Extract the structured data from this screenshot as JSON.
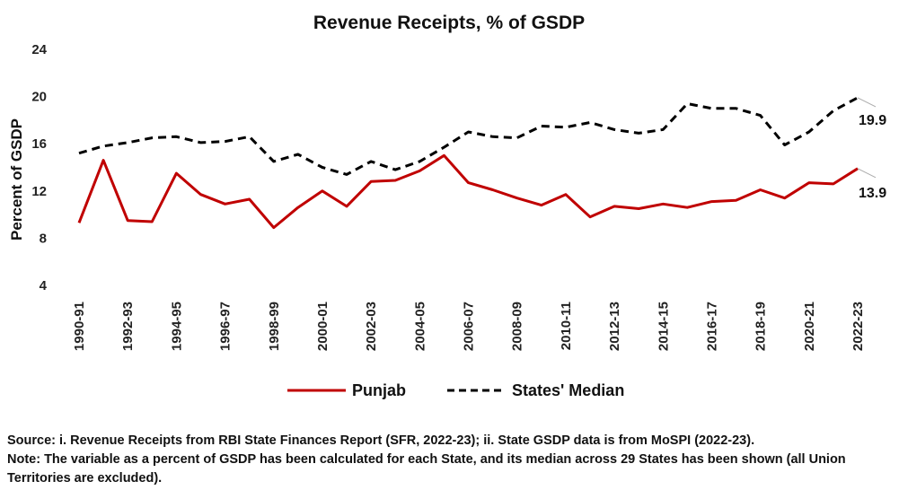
{
  "chart_data": {
    "type": "line",
    "title": "Revenue Receipts, % of GSDP",
    "xlabel": "",
    "ylabel": "Percent of GSDP",
    "ylim": [
      4,
      24
    ],
    "yticks": [
      4,
      8,
      12,
      16,
      20,
      24
    ],
    "grid": false,
    "legend_position": "bottom",
    "x": [
      "1990-91",
      "1991-92",
      "1992-93",
      "1993-94",
      "1994-95",
      "1995-96",
      "1996-97",
      "1997-98",
      "1998-99",
      "1999-00",
      "2000-01",
      "2001-02",
      "2002-03",
      "2003-04",
      "2004-05",
      "2005-06",
      "2006-07",
      "2007-08",
      "2008-09",
      "2009-10",
      "2010-11",
      "2011-12",
      "2012-13",
      "2013-14",
      "2014-15",
      "2015-16",
      "2016-17",
      "2017-18",
      "2018-19",
      "2019-20",
      "2020-21",
      "2021-22",
      "2022-23"
    ],
    "xtick_labels": [
      "1990-91",
      "1992-93",
      "1994-95",
      "1996-97",
      "1998-99",
      "2000-01",
      "2002-03",
      "2004-05",
      "2006-07",
      "2008-09",
      "2010-11",
      "2012-13",
      "2014-15",
      "2016-17",
      "2018-19",
      "2020-21",
      "2022-23"
    ],
    "series": [
      {
        "name": "Punjab",
        "color": "#c00000",
        "style": "solid",
        "values": [
          9.3,
          14.6,
          9.5,
          9.4,
          13.5,
          11.7,
          10.9,
          11.3,
          8.9,
          10.6,
          12.0,
          10.7,
          12.8,
          12.9,
          13.7,
          15.0,
          12.7,
          12.1,
          11.4,
          10.8,
          11.7,
          9.8,
          10.7,
          10.5,
          10.9,
          10.6,
          11.1,
          11.2,
          12.1,
          11.4,
          12.7,
          12.6,
          13.9
        ],
        "end_label": "13.9"
      },
      {
        "name": "States' Median",
        "color": "#000000",
        "style": "dashed",
        "values": [
          15.2,
          15.8,
          16.1,
          16.5,
          16.6,
          16.1,
          16.2,
          16.6,
          14.5,
          15.1,
          14.0,
          13.4,
          14.5,
          13.8,
          14.5,
          15.7,
          17.0,
          16.6,
          16.5,
          17.5,
          17.4,
          17.8,
          17.2,
          16.9,
          17.2,
          19.4,
          19.0,
          19.0,
          18.4,
          15.9,
          17.0,
          18.8,
          19.9
        ],
        "end_label": "19.9"
      }
    ]
  },
  "footer": {
    "source": "Source: i. Revenue Receipts from RBI State Finances Report (SFR, 2022-23); ii. State GSDP data is from MoSPI (2022-23).",
    "note": "Note: The variable as a percent of GSDP has been calculated for each State, and its median across 29 States has been shown (all Union Territories are excluded)."
  }
}
